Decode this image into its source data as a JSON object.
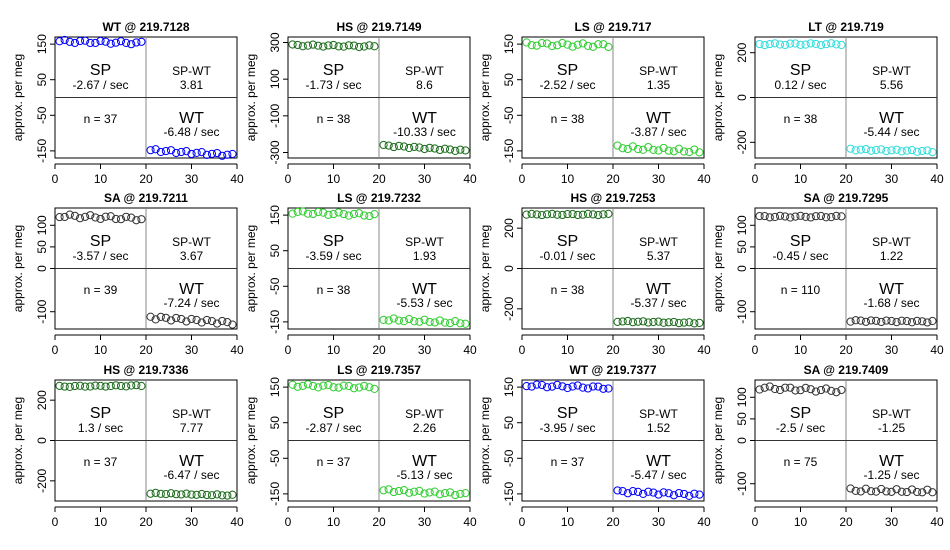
{
  "chart_data": [
    {
      "type": "scatter",
      "title": "WT @ 219.7128",
      "ylabel": "approx. per meg",
      "color": "#0000ff",
      "ylim": [
        -170,
        170
      ],
      "yticks": [
        150,
        50,
        -50,
        -150
      ],
      "xlim": [
        0,
        40
      ],
      "xticks": [
        0,
        10,
        20,
        30,
        40
      ],
      "sp_label": "SP",
      "sp_rate": "-2.67 / sec",
      "diff_label": "SP-WT",
      "diff_value": "3.81",
      "n_label": "n = 37",
      "wt_label": "WT",
      "wt_rate": "-6.48 / sec",
      "sp_start": 158,
      "sp_end": 153,
      "wt_start": -148,
      "wt_end": -162,
      "noise": 4
    },
    {
      "type": "scatter",
      "title": "HS @ 219.7149",
      "ylabel": "approx. per meg",
      "color": "#1a6b1a",
      "ylim": [
        -330,
        330
      ],
      "yticks": [
        300,
        100,
        -100,
        -300
      ],
      "xlim": [
        0,
        40
      ],
      "xticks": [
        0,
        10,
        20,
        30,
        40
      ],
      "sp_label": "SP",
      "sp_rate": "-1.73 / sec",
      "diff_label": "SP-WT",
      "diff_value": "8.6",
      "n_label": "n = 38",
      "wt_label": "WT",
      "wt_rate": "-10.33 / sec",
      "sp_start": 285,
      "sp_end": 279,
      "wt_start": -262,
      "wt_end": -290,
      "noise": 5
    },
    {
      "type": "scatter",
      "title": "LS @ 219.717",
      "ylabel": "approx. per meg",
      "color": "#32cd32",
      "ylim": [
        -170,
        170
      ],
      "yticks": [
        150,
        50,
        -50,
        -150
      ],
      "xlim": [
        0,
        40
      ],
      "xticks": [
        0,
        10,
        20,
        30,
        40
      ],
      "sp_label": "SP",
      "sp_rate": "-2.52 / sec",
      "diff_label": "SP-WT",
      "diff_value": "1.35",
      "n_label": "n = 38",
      "wt_label": "WT",
      "wt_rate": "-3.87 / sec",
      "sp_start": 150,
      "sp_end": 146,
      "wt_start": -140,
      "wt_end": -152,
      "noise": 5
    },
    {
      "type": "scatter",
      "title": "LT @ 219.719",
      "ylabel": "approx. per meg",
      "color": "#33dddd",
      "ylim": [
        -270,
        270
      ],
      "yticks": [
        200,
        0,
        -200
      ],
      "xlim": [
        0,
        40
      ],
      "xticks": [
        0,
        10,
        20,
        30,
        40
      ],
      "sp_label": "SP",
      "sp_rate": "0.12 / sec",
      "diff_label": "SP-WT",
      "diff_value": "5.56",
      "n_label": "n = 38",
      "wt_label": "WT",
      "wt_rate": "-5.44 / sec",
      "sp_start": 238,
      "sp_end": 238,
      "wt_start": -232,
      "wt_end": -240,
      "noise": 4
    },
    {
      "type": "scatter",
      "title": "SA @ 219.7211",
      "ylabel": "approx. per meg",
      "color": "#333333",
      "ylim": [
        -140,
        140
      ],
      "yticks": [
        100,
        50,
        0,
        -100
      ],
      "xlim": [
        0,
        40
      ],
      "xticks": [
        0,
        10,
        20,
        30,
        40
      ],
      "sp_label": "SP",
      "sp_rate": "-3.57 / sec",
      "diff_label": "SP-WT",
      "diff_value": "3.67",
      "n_label": "n = 39",
      "wt_label": "WT",
      "wt_rate": "-7.24 / sec",
      "sp_start": 122,
      "sp_end": 115,
      "wt_start": -113,
      "wt_end": -126,
      "noise": 4
    },
    {
      "type": "scatter",
      "title": "LS @ 219.7232",
      "ylabel": "approx. per meg",
      "color": "#32cd32",
      "ylim": [
        -170,
        170
      ],
      "yticks": [
        150,
        50,
        -50,
        -150
      ],
      "xlim": [
        0,
        40
      ],
      "xticks": [
        0,
        10,
        20,
        30,
        40
      ],
      "sp_label": "SP",
      "sp_rate": "-3.59 / sec",
      "diff_label": "SP-WT",
      "diff_value": "1.93",
      "n_label": "n = 38",
      "wt_label": "WT",
      "wt_rate": "-5.53 / sec",
      "sp_start": 158,
      "sp_end": 150,
      "wt_start": -143,
      "wt_end": -153,
      "noise": 4
    },
    {
      "type": "scatter",
      "title": "HS @ 219.7253",
      "ylabel": "approx. per meg",
      "color": "#1a6b1a",
      "ylim": [
        -300,
        300
      ],
      "yticks": [
        200,
        0,
        -200
      ],
      "xlim": [
        0,
        40
      ],
      "xticks": [
        0,
        10,
        20,
        30,
        40
      ],
      "sp_label": "SP",
      "sp_rate": "-0.01 / sec",
      "diff_label": "SP-WT",
      "diff_value": "5.37",
      "n_label": "n = 38",
      "wt_label": "WT",
      "wt_rate": "-5.37 / sec",
      "sp_start": 268,
      "sp_end": 268,
      "wt_start": -262,
      "wt_end": -270,
      "noise": 3
    },
    {
      "type": "scatter",
      "title": "SA @ 219.7295",
      "ylabel": "approx. per meg",
      "color": "#333333",
      "ylim": [
        -140,
        140
      ],
      "yticks": [
        100,
        50,
        0,
        -100
      ],
      "xlim": [
        0,
        40
      ],
      "xticks": [
        0,
        10,
        20,
        30,
        40
      ],
      "sp_label": "SP",
      "sp_rate": "-0.45 / sec",
      "diff_label": "SP-WT",
      "diff_value": "1.22",
      "n_label": "n = 110",
      "wt_label": "WT",
      "wt_rate": "-1.68 / sec",
      "sp_start": 120,
      "sp_end": 120,
      "wt_start": -121,
      "wt_end": -123,
      "noise": 2
    },
    {
      "type": "scatter",
      "title": "HS @ 219.7336",
      "ylabel": "approx. per meg",
      "color": "#1a6b1a",
      "ylim": [
        -300,
        300
      ],
      "yticks": [
        200,
        0,
        -200
      ],
      "xlim": [
        0,
        40
      ],
      "xticks": [
        0,
        10,
        20,
        30,
        40
      ],
      "sp_label": "SP",
      "sp_rate": "1.3 / sec",
      "diff_label": "SP-WT",
      "diff_value": "7.77",
      "n_label": "n = 37",
      "wt_label": "WT",
      "wt_rate": "-6.47 / sec",
      "sp_start": 268,
      "sp_end": 272,
      "wt_start": -262,
      "wt_end": -272,
      "noise": 3
    },
    {
      "type": "scatter",
      "title": "LS @ 219.7357",
      "ylabel": "approx. per meg",
      "color": "#32cd32",
      "ylim": [
        -170,
        170
      ],
      "yticks": [
        150,
        50,
        -50,
        -150
      ],
      "xlim": [
        0,
        40
      ],
      "xticks": [
        0,
        10,
        20,
        30,
        40
      ],
      "sp_label": "SP",
      "sp_rate": "-2.87 / sec",
      "diff_label": "SP-WT",
      "diff_value": "2.26",
      "n_label": "n = 37",
      "wt_label": "WT",
      "wt_rate": "-5.13 / sec",
      "sp_start": 155,
      "sp_end": 149,
      "wt_start": -140,
      "wt_end": -151,
      "noise": 4
    },
    {
      "type": "scatter",
      "title": "WT @ 219.7377",
      "ylabel": "approx. per meg",
      "color": "#0000ff",
      "ylim": [
        -170,
        170
      ],
      "yticks": [
        150,
        50,
        -50,
        -150
      ],
      "xlim": [
        0,
        40
      ],
      "xticks": [
        0,
        10,
        20,
        30,
        40
      ],
      "sp_label": "SP",
      "sp_rate": "-3.95 / sec",
      "diff_label": "SP-WT",
      "diff_value": "1.52",
      "n_label": "n = 37",
      "wt_label": "WT",
      "wt_rate": "-5.47 / sec",
      "sp_start": 155,
      "sp_end": 148,
      "wt_start": -143,
      "wt_end": -153,
      "noise": 4
    },
    {
      "type": "scatter",
      "title": "SA @ 219.7409",
      "ylabel": "approx. per meg",
      "color": "#333333",
      "ylim": [
        -140,
        140
      ],
      "yticks": [
        100,
        50,
        0,
        -100
      ],
      "xlim": [
        0,
        40
      ],
      "xticks": [
        0,
        10,
        20,
        30,
        40
      ],
      "sp_label": "SP",
      "sp_rate": "-2.5 / sec",
      "diff_label": "SP-WT",
      "diff_value": "-1.25",
      "n_label": "n = 75",
      "wt_label": "WT",
      "wt_rate": "-1.25 / sec",
      "sp_start": 122,
      "sp_end": 115,
      "wt_start": -115,
      "wt_end": -118,
      "noise": 4
    }
  ]
}
